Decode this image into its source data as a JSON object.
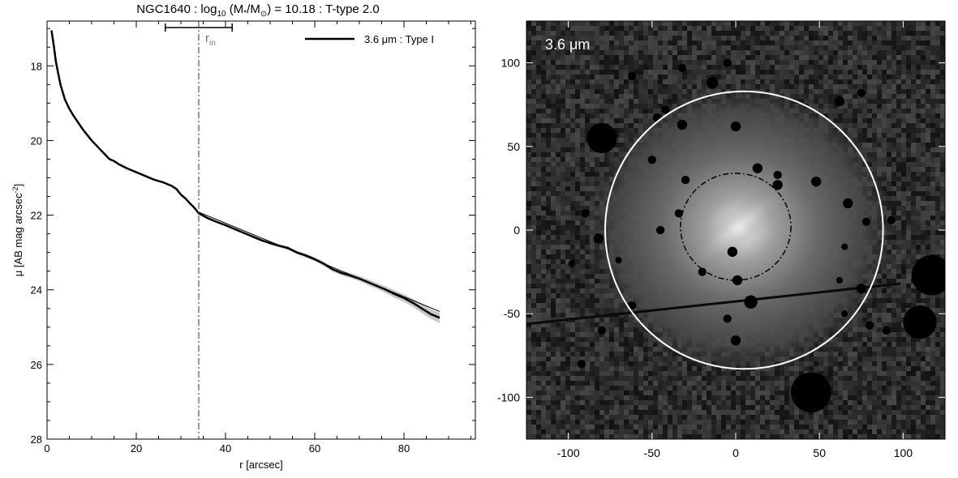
{
  "title_parts": {
    "prefix": "NGC1640 : log",
    "sub": "10",
    "mid1": " (M",
    "star": "*",
    "mid2": "/M",
    "sun": "⊙",
    "suffix": ") = 10.18 : T-type 2.0"
  },
  "chart_data": [
    {
      "type": "line",
      "xlabel": "r [arcsec]",
      "ylabel_main": "μ [AB mag arcsec",
      "ylabel_sup": "-2",
      "ylabel_close": "]",
      "xlim": [
        0,
        96
      ],
      "ylim": [
        28,
        16.8
      ],
      "y_inverted": true,
      "xticks": [
        0,
        20,
        40,
        60,
        80
      ],
      "yticks": [
        18,
        20,
        22,
        24,
        26,
        28
      ],
      "legend": {
        "label": "3.6 μm : Type I",
        "position": "top-right"
      },
      "r_in": {
        "label_main": "r",
        "label_sub": "in",
        "value": 34,
        "err_low": 26.5,
        "err_high": 41.5
      },
      "series": [
        {
          "name": "3.6 μm : Type I",
          "x": [
            1,
            1.5,
            2,
            3,
            4,
            5,
            6,
            8,
            10,
            12,
            14,
            15,
            16,
            18,
            20,
            22,
            24,
            26,
            28,
            29,
            30,
            31,
            32,
            33,
            34,
            36,
            38,
            40,
            42,
            44,
            46,
            48,
            50,
            52,
            54,
            56,
            58,
            60,
            62,
            64,
            66,
            68,
            70,
            72,
            74,
            76,
            78,
            80,
            82,
            84,
            86,
            88
          ],
          "y": [
            17.05,
            17.45,
            17.9,
            18.5,
            18.9,
            19.15,
            19.35,
            19.7,
            20.0,
            20.25,
            20.5,
            20.55,
            20.63,
            20.75,
            20.85,
            20.95,
            21.05,
            21.12,
            21.22,
            21.3,
            21.45,
            21.55,
            21.68,
            21.8,
            21.95,
            22.08,
            22.18,
            22.27,
            22.37,
            22.47,
            22.57,
            22.67,
            22.75,
            22.82,
            22.88,
            23.0,
            23.08,
            23.18,
            23.3,
            23.45,
            23.55,
            23.62,
            23.7,
            23.8,
            23.9,
            24.0,
            24.12,
            24.22,
            24.35,
            24.5,
            24.65,
            24.75
          ],
          "band_halfwidth": [
            0.02,
            0.02,
            0.02,
            0.02,
            0.02,
            0.02,
            0.02,
            0.02,
            0.02,
            0.02,
            0.02,
            0.02,
            0.02,
            0.02,
            0.02,
            0.02,
            0.02,
            0.02,
            0.02,
            0.02,
            0.02,
            0.02,
            0.03,
            0.03,
            0.03,
            0.03,
            0.03,
            0.03,
            0.03,
            0.03,
            0.03,
            0.03,
            0.04,
            0.04,
            0.04,
            0.05,
            0.05,
            0.05,
            0.06,
            0.06,
            0.06,
            0.07,
            0.07,
            0.08,
            0.08,
            0.09,
            0.1,
            0.1,
            0.11,
            0.12,
            0.13,
            0.14
          ]
        },
        {
          "name": "",
          "type": "fit",
          "x": [
            34,
            88
          ],
          "y": [
            21.92,
            24.58
          ]
        }
      ]
    },
    {
      "type": "image",
      "panel_label": "3.6 μm",
      "xlim": [
        -125,
        125
      ],
      "ylim": [
        -125,
        125
      ],
      "xticks": [
        -100,
        -50,
        0,
        50,
        100
      ],
      "yticks": [
        -100,
        -50,
        0,
        50,
        100
      ],
      "outer_ellipse": {
        "cx": 5,
        "cy": 0,
        "rx": 83,
        "ry": 83,
        "color": "#ffffff",
        "style": "solid"
      },
      "inner_ellipse": {
        "cx": 0,
        "cy": 2,
        "rx": 33,
        "ry": 32,
        "color": "#000000",
        "style": "dash-dot"
      },
      "masks": [
        [
          -80,
          55,
          9
        ],
        [
          -32,
          63,
          3
        ],
        [
          0,
          62,
          3
        ],
        [
          -30,
          30,
          2.5
        ],
        [
          -50,
          42,
          2.5
        ],
        [
          13,
          37,
          3
        ],
        [
          25,
          33,
          2.5
        ],
        [
          48,
          29,
          3
        ],
        [
          67,
          16,
          3
        ],
        [
          -34,
          10,
          2.5
        ],
        [
          -45,
          0,
          2.5
        ],
        [
          -82,
          -5,
          3
        ],
        [
          -90,
          10,
          2.5
        ],
        [
          -70,
          -18,
          2
        ],
        [
          -2,
          -13,
          3
        ],
        [
          1,
          -30,
          3
        ],
        [
          -20,
          -25,
          2.5
        ],
        [
          9,
          -43,
          4
        ],
        [
          -5,
          -53,
          2.5
        ],
        [
          0,
          -66,
          3
        ],
        [
          78,
          5,
          2.5
        ],
        [
          93,
          6,
          2.5
        ],
        [
          65,
          -10,
          2
        ],
        [
          75,
          -35,
          3
        ],
        [
          80,
          -57,
          2.5
        ],
        [
          90,
          -60,
          2.5
        ],
        [
          117,
          -27,
          12
        ],
        [
          110,
          -55,
          10
        ],
        [
          45,
          -97,
          12
        ],
        [
          -14,
          88,
          3.5
        ],
        [
          -47,
          67,
          2.5
        ],
        [
          -42,
          72,
          2.5
        ],
        [
          -62,
          92,
          2.5
        ],
        [
          -32,
          97,
          2.5
        ],
        [
          62,
          77,
          3
        ],
        [
          75,
          82,
          2.5
        ],
        [
          -5,
          100,
          2.5
        ],
        [
          -92,
          -80,
          2.5
        ],
        [
          -62,
          -45,
          2.5
        ],
        [
          -80,
          -60,
          2.5
        ],
        [
          25,
          27,
          3
        ],
        [
          62,
          -30,
          2
        ],
        [
          65,
          -50,
          2
        ],
        [
          -98,
          -20,
          2
        ]
      ]
    }
  ]
}
